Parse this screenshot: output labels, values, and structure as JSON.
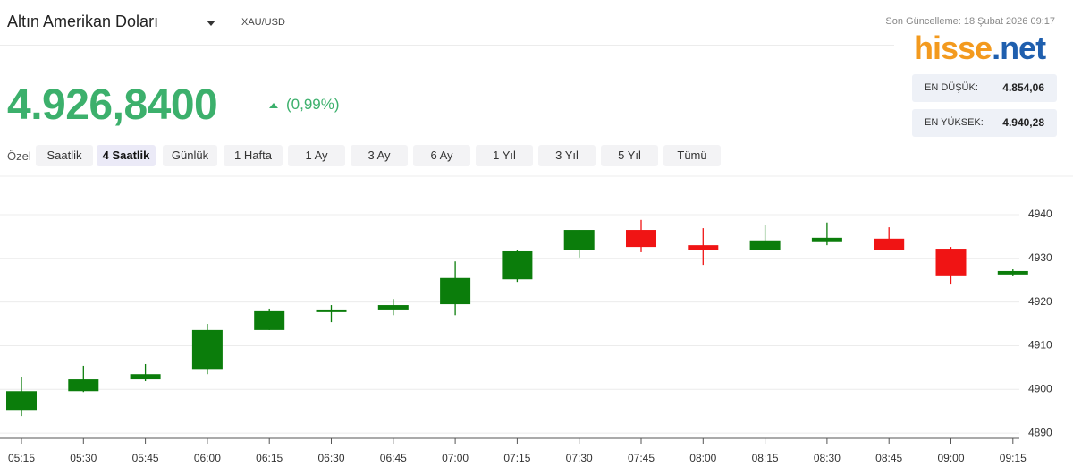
{
  "header": {
    "title": "Altın Amerikan Doları",
    "symbol": "XAU/USD",
    "updated": "Son Güncelleme: 18 Şubat 2026 09:17",
    "logo_left": "hisse",
    "logo_right": ".net"
  },
  "price": {
    "value": "4.926,8400",
    "change": "(0,99%)"
  },
  "stats": [
    {
      "label": "EN DÜŞÜK:",
      "value": "4.854,06"
    },
    {
      "label": "EN YÜKSEK:",
      "value": "4.940,28"
    }
  ],
  "range_label": "Özel",
  "tabs": [
    "Saatlik",
    "4 Saatlik",
    "Günlük",
    "1 Hafta",
    "1 Ay",
    "3 Ay",
    "6 Ay",
    "1 Yıl",
    "3 Yıl",
    "5 Yıl",
    "Tümü"
  ],
  "chart_data": {
    "type": "candlestick",
    "categories": [
      "05:15",
      "05:30",
      "05:45",
      "06:00",
      "06:15",
      "06:30",
      "06:45",
      "07:00",
      "07:15",
      "07:30",
      "07:45",
      "08:00",
      "08:15",
      "08:30",
      "08:45",
      "09:00",
      "09:15"
    ],
    "open": [
      4895.3,
      4899.6,
      4902.3,
      4904.5,
      4913.6,
      4917.7,
      4918.3,
      4919.5,
      4925.2,
      4931.8,
      4936.5,
      4933.0,
      4932.0,
      4933.9,
      4934.5,
      4932.2,
      4926.3
    ],
    "high": [
      4902.9,
      4905.4,
      4905.8,
      4915.0,
      4918.5,
      4919.3,
      4920.7,
      4929.3,
      4932.0,
      4936.5,
      4938.8,
      4936.9,
      4937.7,
      4938.2,
      4937.1,
      4932.6,
      4927.5
    ],
    "low": [
      4893.9,
      4899.4,
      4901.9,
      4903.5,
      4913.6,
      4915.4,
      4917.0,
      4917.0,
      4924.6,
      4930.2,
      4931.4,
      4928.5,
      4932.0,
      4933.0,
      4932.0,
      4924.0,
      4925.9
    ],
    "close": [
      4899.6,
      4902.3,
      4903.5,
      4913.6,
      4917.9,
      4918.3,
      4919.3,
      4925.5,
      4931.6,
      4936.5,
      4932.6,
      4932.0,
      4934.1,
      4934.7,
      4932.0,
      4926.1,
      4927.1
    ],
    "up_color": "#0b7d0b",
    "down_color": "#f01414",
    "ylim": [
      4888.8,
      4949
    ],
    "yticks": [
      4890,
      4900,
      4910,
      4920,
      4930,
      4940
    ],
    "grid": true
  }
}
